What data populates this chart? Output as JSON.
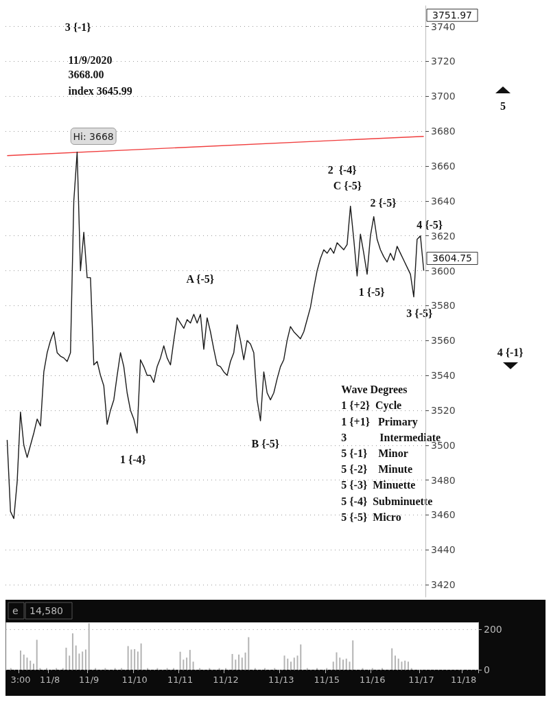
{
  "chart_data": [
    {
      "type": "line",
      "ylim": [
        3413,
        3752
      ],
      "yticks": [
        3420,
        3440,
        3460,
        3480,
        3500,
        3520,
        3540,
        3560,
        3580,
        3600,
        3620,
        3640,
        3660,
        3680,
        3700,
        3720,
        3740
      ],
      "grid": "y",
      "tick_labels": "y",
      "line_style": "solid",
      "categories": [
        null,
        null,
        null,
        null,
        null,
        null,
        null,
        null,
        null,
        null,
        null,
        null,
        null,
        null,
        null,
        null,
        null,
        null,
        null,
        null,
        null,
        null,
        null,
        null,
        null,
        null,
        null,
        null,
        null,
        null,
        null,
        null,
        null,
        null,
        null,
        null,
        null,
        null,
        null,
        null,
        null,
        null,
        null,
        null,
        null,
        null,
        null,
        null,
        null,
        null,
        null,
        null,
        null,
        null,
        null,
        null,
        null,
        null,
        null,
        null,
        null,
        null,
        null,
        null,
        null,
        null,
        null,
        null,
        null,
        null,
        null,
        null,
        null,
        null,
        null,
        null,
        null,
        null,
        null,
        null,
        null,
        null,
        null,
        null,
        null,
        null,
        null,
        null,
        null,
        null,
        null,
        null,
        null,
        null,
        null,
        null,
        null,
        null,
        null,
        null,
        null,
        null,
        null,
        null,
        null,
        null,
        null,
        null,
        null,
        null,
        null,
        null,
        null,
        null,
        null,
        null,
        null,
        null,
        null,
        null,
        null,
        null,
        null,
        null,
        null,
        null
      ],
      "series": [
        {
          "color": "#f03c3c",
          "values": [
            3666,
            null,
            null,
            null,
            null,
            null,
            null,
            null,
            null,
            null,
            null,
            null,
            null,
            null,
            null,
            null,
            null,
            null,
            null,
            null,
            null,
            null,
            null,
            null,
            null,
            null,
            null,
            null,
            null,
            null,
            null,
            null,
            null,
            null,
            null,
            null,
            null,
            null,
            null,
            null,
            null,
            null,
            null,
            null,
            null,
            null,
            null,
            null,
            null,
            null,
            null,
            null,
            null,
            null,
            null,
            null,
            null,
            null,
            null,
            null,
            null,
            null,
            null,
            null,
            null,
            null,
            null,
            null,
            null,
            null,
            null,
            null,
            null,
            null,
            null,
            null,
            null,
            null,
            null,
            null,
            null,
            null,
            null,
            null,
            null,
            null,
            null,
            null,
            null,
            null,
            null,
            null,
            null,
            null,
            null,
            null,
            null,
            null,
            null,
            null,
            null,
            null,
            null,
            null,
            null,
            null,
            null,
            null,
            null,
            null,
            null,
            null,
            null,
            null,
            null,
            null,
            null,
            null,
            null,
            null,
            null,
            null,
            null,
            null,
            null,
            3677
          ]
        },
        {
          "color": "#1a1a1a",
          "values": [
            3503,
            3462,
            3458,
            3479,
            3519,
            3500,
            3493,
            3500,
            3507,
            3515,
            3511,
            3542,
            3553,
            3560,
            3565,
            3553,
            3551,
            3550,
            3548,
            3553,
            3640,
            3668,
            3600,
            3622,
            3596,
            3596,
            3546,
            3548,
            3540,
            3534,
            3512,
            3520,
            3526,
            3540,
            3553,
            3545,
            3530,
            3520,
            3515,
            3507,
            3549,
            3545,
            3540,
            3540,
            3536,
            3545,
            3550,
            3557,
            3550,
            3546,
            3560,
            3573,
            3570,
            3567,
            3572,
            3570,
            3575,
            3570,
            3575,
            3555,
            3573,
            3565,
            3555,
            3546,
            3545,
            3542,
            3540,
            3548,
            3553,
            3569,
            3560,
            3549,
            3560,
            3558,
            3553,
            3526,
            3514,
            3542,
            3530,
            3526,
            3530,
            3538,
            3545,
            3549,
            3560,
            3568,
            3565,
            3563,
            3561,
            3565,
            3572,
            3579,
            3590,
            3600,
            3607,
            3612,
            3610,
            3613,
            3610,
            3616,
            3614,
            3612,
            3615,
            3637,
            3618,
            3597,
            3621,
            3610,
            3598,
            3620,
            3631,
            3618,
            3612,
            3608,
            3605,
            3610,
            3606,
            3614,
            3610,
            3606,
            3602,
            3598,
            3585,
            3618,
            3620,
            3600
          ]
        }
      ],
      "annotations": [
        "3 {-1}",
        "11/9/2020",
        "3668.00",
        "index 3645.99",
        "Hi: 3668",
        "5",
        "2  {-4}",
        "C {-5}",
        "2 {-5}",
        "4 {-5}",
        "A {-5}",
        "1 {-5}",
        "3 {-5}",
        "4 {-1}",
        "1 {-4}",
        "B {-5}",
        "3751.97",
        "3604.75",
        "Wave Degrees",
        "1 {+2}  Cycle",
        "1 {+1}   Primary",
        "3            Intermediate",
        "5 {-1}    Minor",
        "5 {-2}    Minute",
        "5 {-3}  Minuette",
        "5 {-4}  Subminuette",
        "5 {-5}  Micro"
      ]
    },
    {
      "type": "bar",
      "ylim": [
        0,
        234
      ],
      "yticks": [
        0,
        200
      ],
      "grid": "y",
      "color": "#b3b3b3",
      "categories": [
        null,
        null,
        null,
        null,
        "3:00",
        null,
        null,
        null,
        null,
        null,
        null,
        null,
        null,
        "11/8",
        null,
        null,
        null,
        null,
        null,
        null,
        null,
        null,
        null,
        null,
        null,
        "11/9",
        null,
        null,
        null,
        null,
        null,
        null,
        null,
        null,
        null,
        null,
        null,
        null,
        null,
        "11/10",
        null,
        null,
        null,
        null,
        null,
        null,
        null,
        null,
        null,
        null,
        null,
        null,
        null,
        "11/11",
        null,
        null,
        null,
        null,
        null,
        null,
        null,
        null,
        null,
        null,
        null,
        null,
        null,
        "11/12",
        null,
        null,
        null,
        null,
        null,
        null,
        null,
        null,
        null,
        null,
        null,
        null,
        null,
        null,
        null,
        null,
        "11/13",
        null,
        null,
        null,
        null,
        null,
        null,
        null,
        null,
        null,
        null,
        null,
        null,
        null,
        "11/15",
        null,
        null,
        null,
        null,
        null,
        null,
        null,
        null,
        null,
        null,
        null,
        null,
        null,
        "11/16",
        null,
        null,
        null,
        null,
        null,
        null,
        null,
        null,
        null,
        null,
        null,
        null,
        null,
        null,
        "11/17",
        null,
        null,
        null,
        null,
        null,
        null,
        null,
        null,
        null,
        null,
        null,
        null,
        "11/18",
        null,
        null,
        null,
        null
      ],
      "values": [
        null,
        8,
        null,
        null,
        95,
        75,
        60,
        45,
        30,
        148,
        8,
        null,
        8,
        null,
        null,
        8,
        null,
        8,
        109,
        70,
        180,
        120,
        80,
        90,
        100,
        230,
        null,
        8,
        null,
        null,
        8,
        null,
        null,
        8,
        null,
        8,
        null,
        117,
        100,
        102,
        90,
        130,
        null,
        8,
        null,
        null,
        8,
        null,
        null,
        8,
        null,
        8,
        null,
        89,
        50,
        60,
        98,
        40,
        null,
        8,
        null,
        null,
        8,
        null,
        null,
        8,
        null,
        8,
        null,
        78,
        50,
        75,
        60,
        85,
        161,
        null,
        8,
        null,
        null,
        8,
        null,
        null,
        8,
        null,
        null,
        70,
        55,
        40,
        60,
        70,
        125,
        null,
        8,
        null,
        null,
        8,
        null,
        null,
        8,
        null,
        40,
        86,
        60,
        50,
        55,
        40,
        145,
        null,
        null,
        8,
        null,
        null,
        8,
        null,
        null,
        8,
        null,
        null,
        106,
        70,
        55,
        40,
        45,
        40,
        8,
        null,
        null,
        null,
        null,
        null,
        null,
        null,
        null,
        null,
        null,
        null,
        null,
        null,
        null,
        null,
        null,
        null,
        null,
        null,
        null
      ],
      "annotations": [
        "e",
        "14,580"
      ]
    }
  ]
}
